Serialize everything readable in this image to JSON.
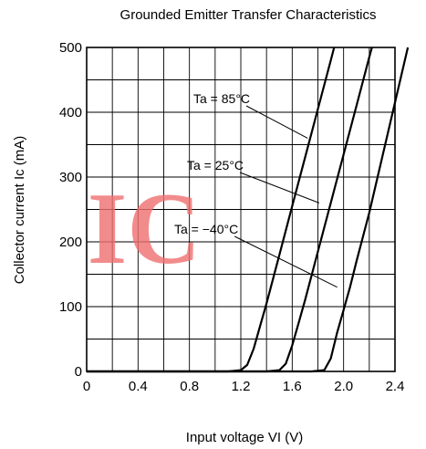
{
  "chart_data": {
    "type": "line",
    "title": "Grounded Emitter Transfer Characteristics",
    "xlabel": "Input voltage  VI (V)",
    "ylabel": "Collector current  Ic (mA)",
    "xlim": [
      0,
      2.4
    ],
    "ylim": [
      0,
      500
    ],
    "x_ticks": [
      "0",
      "0.4",
      "0.8",
      "1.2",
      "1.6",
      "2.0",
      "2.4"
    ],
    "y_ticks": [
      "0",
      "100",
      "200",
      "300",
      "400",
      "500"
    ],
    "grid": true,
    "series": [
      {
        "name": "Ta = 85°C",
        "x": [
          0,
          1.1,
          1.2,
          1.25,
          1.3,
          1.35,
          1.4,
          1.5,
          1.6,
          1.7,
          1.8,
          1.9
        ],
        "y": [
          0,
          0,
          2,
          10,
          35,
          70,
          105,
          180,
          255,
          330,
          405,
          480
        ]
      },
      {
        "name": "Ta = 25°C",
        "x": [
          0,
          1.4,
          1.5,
          1.55,
          1.6,
          1.65,
          1.7,
          1.8,
          1.9,
          2.0,
          2.1,
          2.2
        ],
        "y": [
          0,
          0,
          2,
          12,
          40,
          75,
          110,
          185,
          260,
          335,
          410,
          485
        ]
      },
      {
        "name": "Ta = −40°C",
        "x": [
          0,
          1.75,
          1.85,
          1.9,
          1.95,
          2.0,
          2.05,
          2.1,
          2.2,
          2.3
        ],
        "y": [
          0,
          0,
          2,
          20,
          60,
          95,
          130,
          170,
          245,
          330
        ]
      }
    ],
    "annotations": [
      {
        "text": "Ta = 85°C",
        "points_to": {
          "x": 1.72,
          "y": 360
        }
      },
      {
        "text": "Ta = 25°C",
        "points_to": {
          "x": 1.81,
          "y": 260
        }
      },
      {
        "text": "Ta = −40°C",
        "points_to": {
          "x": 1.95,
          "y": 130
        }
      }
    ]
  },
  "watermark": {
    "text": "IC",
    "color": "#f07070"
  },
  "colors": {
    "line": "#000000",
    "grid": "#000000",
    "background": "#ffffff"
  }
}
